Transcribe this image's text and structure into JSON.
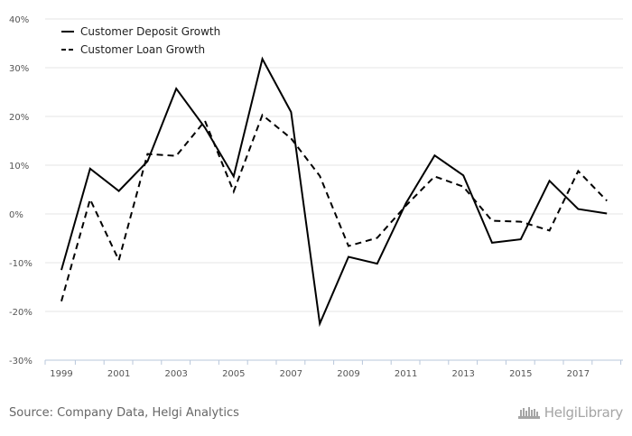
{
  "chart_data": {
    "type": "line",
    "title": "",
    "xlabel": "",
    "ylabel": "",
    "x": [
      1999,
      2000,
      2001,
      2002,
      2003,
      2004,
      2005,
      2006,
      2007,
      2008,
      2009,
      2010,
      2011,
      2012,
      2013,
      2014,
      2015,
      2016,
      2017,
      2018
    ],
    "x_tick_labels": [
      "1999",
      "2001",
      "2003",
      "2005",
      "2007",
      "2009",
      "2011",
      "2013",
      "2015",
      "2017"
    ],
    "ylim": [
      -30,
      40
    ],
    "y_ticks": [
      40,
      30,
      20,
      10,
      0,
      -10,
      -20,
      -30
    ],
    "y_tick_labels": [
      "40%",
      "30%",
      "20%",
      "10%",
      "0%",
      "-10%",
      "-20%",
      "-30%"
    ],
    "y_unit": "%",
    "grid": "horizontal",
    "legend_position": "top-left",
    "series": [
      {
        "name": "Customer Deposit Growth",
        "style": "solid",
        "color": "#000000",
        "values": [
          -11.5,
          9.3,
          4.7,
          10.8,
          25.7,
          17.7,
          7.7,
          31.8,
          20.9,
          -22.5,
          -8.8,
          -10.2,
          2.2,
          12.0,
          7.9,
          -5.9,
          -5.2,
          6.8,
          1.0,
          0.1
        ]
      },
      {
        "name": "Customer Loan Growth",
        "style": "dashed",
        "color": "#000000",
        "values": [
          -17.9,
          3.0,
          -9.5,
          12.3,
          11.9,
          19.1,
          4.6,
          20.3,
          15.5,
          7.8,
          -6.6,
          -4.9,
          1.7,
          7.7,
          5.6,
          -1.4,
          -1.6,
          -3.4,
          8.8,
          2.7
        ]
      }
    ]
  },
  "footer": {
    "source": "Source: Company Data, Helgi Analytics",
    "brand": "HelgiLibrary"
  }
}
